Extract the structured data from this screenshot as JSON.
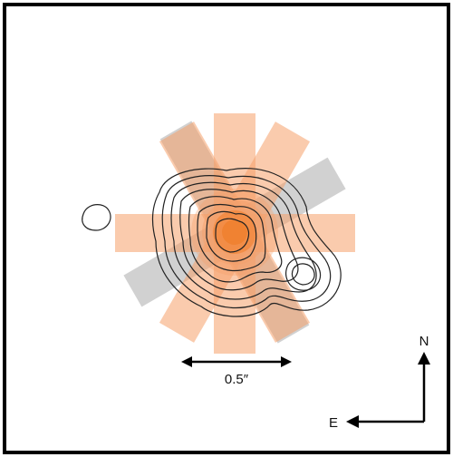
{
  "scale_bar": {
    "label": "0.5″"
  },
  "compass": {
    "north_label": "N",
    "east_label": "E"
  },
  "colors": {
    "frame": "#000000",
    "orange_psf": "#f5a06a",
    "orange_core": "#f07d2a",
    "gray_psf": "#b3b3b3",
    "contour": "#222222",
    "arrow": "#000000"
  }
}
